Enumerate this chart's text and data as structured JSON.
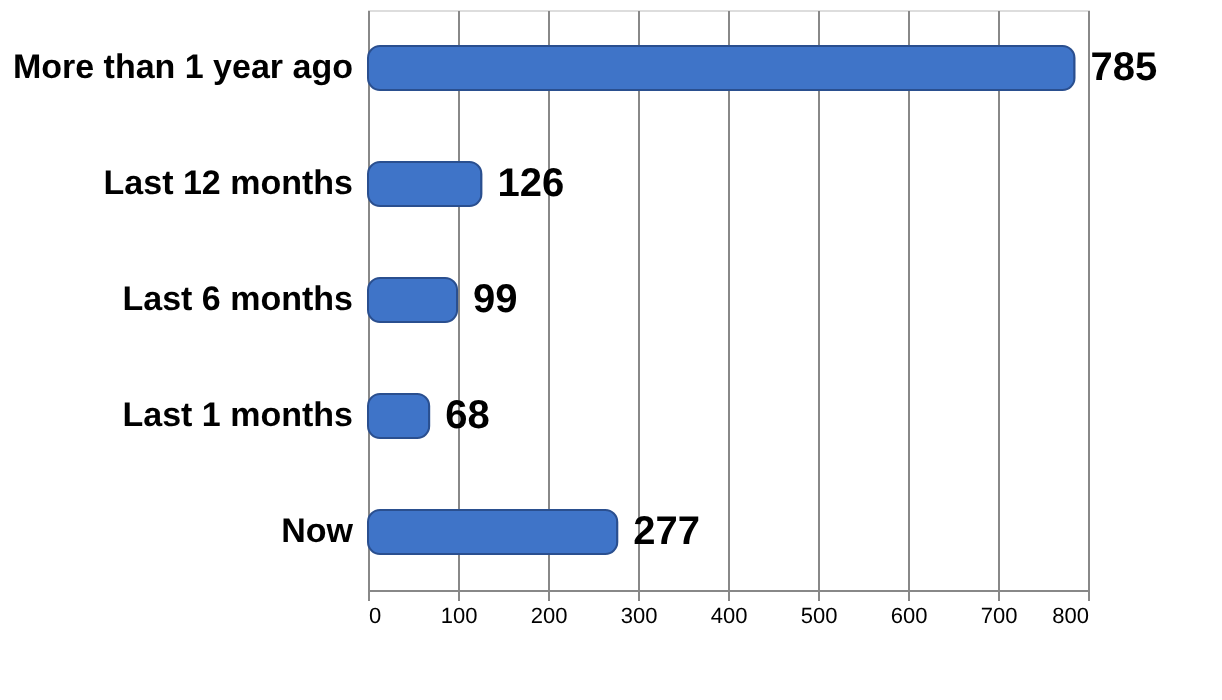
{
  "chart_data": {
    "type": "bar",
    "orientation": "horizontal",
    "categories": [
      "More than 1 year ago",
      "Last 12 months",
      "Last 6 months",
      "Last 1 months",
      "Now"
    ],
    "values": [
      785,
      126,
      99,
      68,
      277
    ],
    "color": "#3f74c8",
    "xlim": [
      0,
      800
    ],
    "xticks": [
      0,
      100,
      200,
      300,
      400,
      500,
      600,
      700,
      800
    ],
    "grid": "x",
    "data_labels": true
  }
}
